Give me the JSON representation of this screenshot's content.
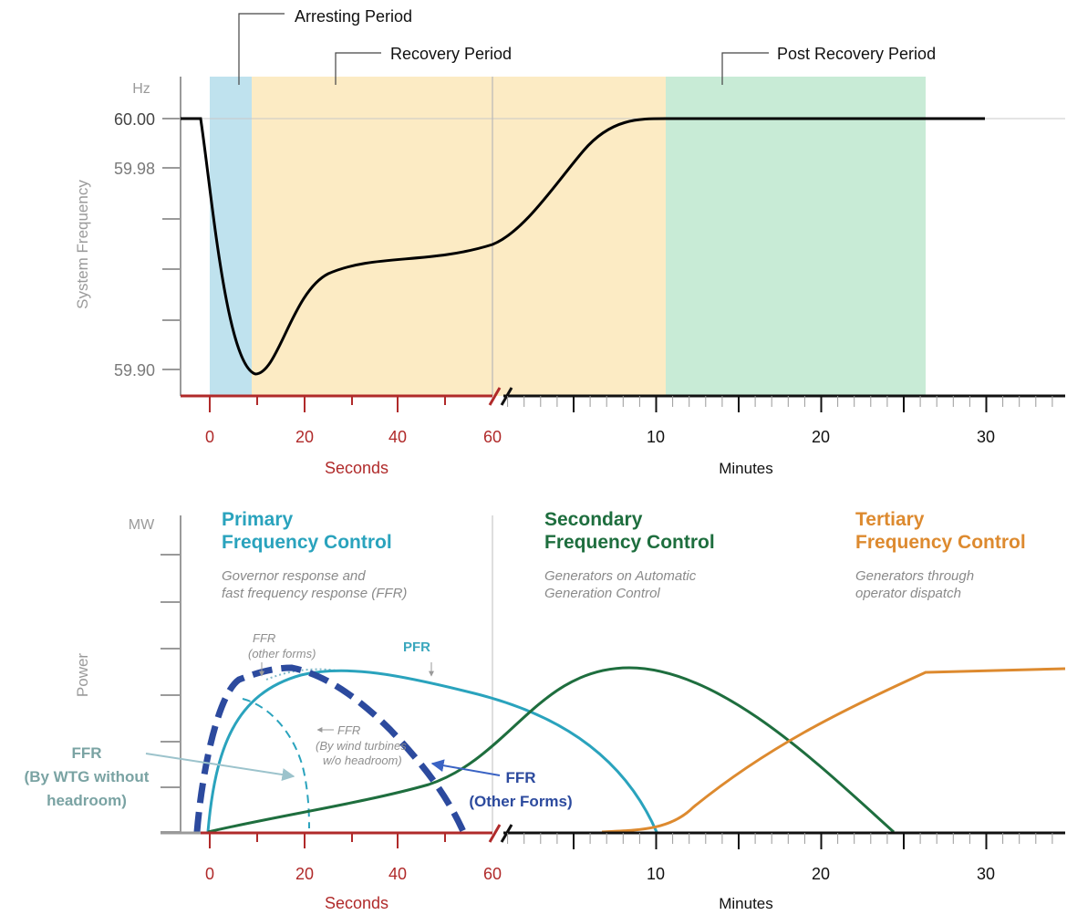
{
  "top_chart": {
    "y_unit": "Hz",
    "y_axis_label": "System Frequency",
    "y_ticks": [
      "60.00",
      "59.98",
      "59.90"
    ],
    "periods": {
      "arresting": "Arresting Period",
      "recovery": "Recovery Period",
      "post_recovery": "Post Recovery Period"
    }
  },
  "bottom_chart": {
    "y_unit": "MW",
    "y_axis_label": "Power",
    "primary": {
      "title_line1": "Primary",
      "title_line2": "Frequency Control",
      "desc_line1": "Governor response and",
      "desc_line2": "fast frequency response (FFR)"
    },
    "secondary": {
      "title_line1": "Secondary",
      "title_line2": "Frequency Control",
      "desc_line1": "Generators on Automatic",
      "desc_line2": "Generation Control"
    },
    "tertiary": {
      "title_line1": "Tertiary",
      "title_line2": "Frequency Control",
      "desc_line1": "Generators through",
      "desc_line2": "operator dispatch"
    },
    "notes": {
      "ffr_other_line1": "FFR",
      "ffr_other_line2": "(other forms)",
      "pfr": "PFR",
      "ffr_wind_line1": "FFR",
      "ffr_wind_line2": "(By wind turbines",
      "ffr_wind_line3": "w/o headroom)"
    },
    "annotations": {
      "wtg_line1": "FFR",
      "wtg_line2": "(By WTG without",
      "wtg_line3": "headroom)",
      "other_line1": "FFR",
      "other_line2": "(Other Forms)"
    }
  },
  "x_axis": {
    "seconds_ticks": [
      "0",
      "20",
      "40",
      "60"
    ],
    "seconds_label": "Seconds",
    "minutes_ticks": [
      "10",
      "20",
      "30"
    ],
    "minutes_label": "Minutes"
  },
  "colors": {
    "arresting_band": "#bfe2ee",
    "recovery_band": "#fcebc4",
    "post_recovery_band": "#c8ebd6",
    "seconds_axis": "#b02a2a",
    "primary": "#2aa3bd",
    "secondary": "#1e6e3e",
    "tertiary": "#dd8a2f",
    "ffr_other": "#2c4a9e",
    "ffr_wtg": "#7aa3a3"
  }
}
